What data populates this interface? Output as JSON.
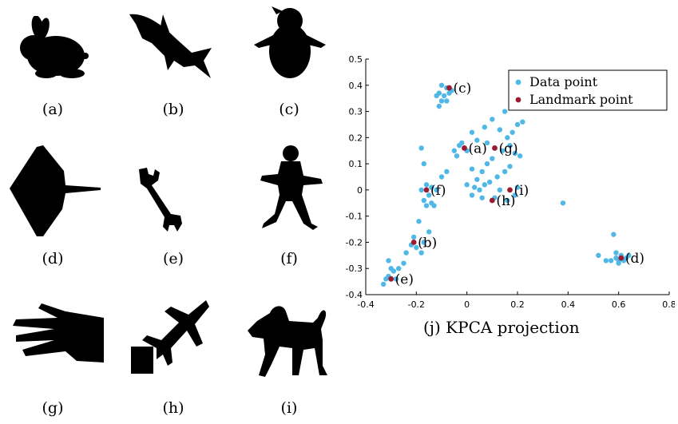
{
  "panels": [
    {
      "label": "(a)",
      "icon": "rabbit-silhouette-icon"
    },
    {
      "label": "(b)",
      "icon": "shark-silhouette-icon"
    },
    {
      "label": "(c)",
      "icon": "penguin-silhouette-icon"
    },
    {
      "label": "(d)",
      "icon": "stingray-silhouette-icon"
    },
    {
      "label": "(e)",
      "icon": "wrench-silhouette-icon"
    },
    {
      "label": "(f)",
      "icon": "person-silhouette-icon"
    },
    {
      "label": "(g)",
      "icon": "hand-silhouette-icon"
    },
    {
      "label": "(h)",
      "icon": "jet-silhouette-icon"
    },
    {
      "label": "(i)",
      "icon": "dog-silhouette-icon"
    }
  ],
  "plot_caption": "(j) KPCA projection",
  "chart_data": {
    "type": "scatter",
    "title": "",
    "xlabel": "",
    "ylabel": "",
    "xlim": [
      -0.4,
      0.8
    ],
    "ylim": [
      -0.4,
      0.5
    ],
    "xticks": [
      "-0.4",
      "-0.2",
      "0",
      "0.2",
      "0.4",
      "0.6",
      "0.8"
    ],
    "yticks": [
      "-0.4",
      "-0.3",
      "-0.2",
      "-0.1",
      "0",
      "0.1",
      "0.2",
      "0.3",
      "0.4",
      "0.5"
    ],
    "legend_position": "top-right",
    "grid": false,
    "series": [
      {
        "name": "Data point",
        "color": "#4FB8E6",
        "points": [
          [
            -0.1,
            0.4
          ],
          [
            -0.08,
            0.39
          ],
          [
            -0.11,
            0.37
          ],
          [
            -0.09,
            0.36
          ],
          [
            -0.07,
            0.37
          ],
          [
            -0.1,
            0.34
          ],
          [
            -0.12,
            0.36
          ],
          [
            -0.08,
            0.34
          ],
          [
            -0.11,
            0.32
          ],
          [
            -0.06,
            0.38
          ],
          [
            -0.03,
            0.17
          ],
          [
            -0.05,
            0.15
          ],
          [
            -0.04,
            0.13
          ],
          [
            -0.02,
            0.18
          ],
          [
            0.0,
            0.15
          ],
          [
            0.02,
            0.22
          ],
          [
            0.04,
            0.19
          ],
          [
            0.07,
            0.24
          ],
          [
            0.08,
            0.18
          ],
          [
            0.1,
            0.27
          ],
          [
            0.13,
            0.23
          ],
          [
            0.15,
            0.3
          ],
          [
            0.16,
            0.2
          ],
          [
            0.18,
            0.22
          ],
          [
            0.2,
            0.25
          ],
          [
            0.22,
            0.26
          ],
          [
            0.17,
            0.17
          ],
          [
            0.19,
            0.14
          ],
          [
            0.21,
            0.13
          ],
          [
            0.14,
            0.15
          ],
          [
            0.1,
            0.12
          ],
          [
            0.08,
            0.1
          ],
          [
            0.06,
            0.07
          ],
          [
            0.04,
            0.04
          ],
          [
            0.03,
            0.01
          ],
          [
            0.05,
            0.0
          ],
          [
            0.02,
            -0.02
          ],
          [
            0.06,
            -0.03
          ],
          [
            0.0,
            0.02
          ],
          [
            0.07,
            0.02
          ],
          [
            0.09,
            0.03
          ],
          [
            0.12,
            0.05
          ],
          [
            0.15,
            0.07
          ],
          [
            0.13,
            0.0
          ],
          [
            0.11,
            -0.03
          ],
          [
            0.16,
            -0.04
          ],
          [
            0.19,
            -0.02
          ],
          [
            0.2,
            0.01
          ],
          [
            0.17,
            0.09
          ],
          [
            0.02,
            0.08
          ],
          [
            -0.18,
            0.16
          ],
          [
            -0.17,
            0.1
          ],
          [
            -0.16,
            0.02
          ],
          [
            -0.15,
            -0.02
          ],
          [
            -0.14,
            -0.05
          ],
          [
            -0.13,
            -0.06
          ],
          [
            -0.16,
            -0.06
          ],
          [
            -0.17,
            -0.04
          ],
          [
            -0.14,
            0.01
          ],
          [
            -0.12,
            0.0
          ],
          [
            -0.1,
            0.05
          ],
          [
            -0.08,
            0.07
          ],
          [
            -0.18,
            0.0
          ],
          [
            -0.19,
            -0.12
          ],
          [
            -0.15,
            -0.16
          ],
          [
            -0.17,
            -0.2
          ],
          [
            -0.21,
            -0.18
          ],
          [
            -0.2,
            -0.22
          ],
          [
            -0.22,
            -0.21
          ],
          [
            -0.18,
            -0.24
          ],
          [
            -0.24,
            -0.24
          ],
          [
            -0.25,
            -0.28
          ],
          [
            -0.27,
            -0.3
          ],
          [
            -0.29,
            -0.31
          ],
          [
            -0.31,
            -0.27
          ],
          [
            -0.3,
            -0.3
          ],
          [
            -0.31,
            -0.33
          ],
          [
            -0.33,
            -0.36
          ],
          [
            -0.28,
            -0.34
          ],
          [
            -0.32,
            -0.34
          ],
          [
            0.38,
            -0.05
          ],
          [
            0.52,
            -0.25
          ],
          [
            0.55,
            -0.27
          ],
          [
            0.58,
            -0.17
          ],
          [
            0.59,
            -0.26
          ],
          [
            0.6,
            -0.27
          ],
          [
            0.61,
            -0.25
          ],
          [
            0.62,
            -0.27
          ],
          [
            0.63,
            -0.26
          ],
          [
            0.64,
            -0.25
          ],
          [
            0.6,
            -0.28
          ],
          [
            0.59,
            -0.24
          ],
          [
            0.57,
            -0.27
          ]
        ]
      },
      {
        "name": "Landmark point",
        "color": "#9B1C31",
        "points": [
          {
            "x": -0.07,
            "y": 0.39,
            "label": "(c)"
          },
          {
            "x": -0.01,
            "y": 0.16,
            "label": "(a)"
          },
          {
            "x": 0.11,
            "y": 0.16,
            "label": "(g)"
          },
          {
            "x": -0.16,
            "y": 0.0,
            "label": "(f)"
          },
          {
            "x": 0.17,
            "y": 0.0,
            "label": "(i)"
          },
          {
            "x": 0.1,
            "y": -0.04,
            "label": "(h)"
          },
          {
            "x": -0.21,
            "y": -0.2,
            "label": "(b)"
          },
          {
            "x": 0.61,
            "y": -0.26,
            "label": "(d)"
          },
          {
            "x": -0.3,
            "y": -0.34,
            "label": "(e)"
          }
        ]
      }
    ]
  }
}
